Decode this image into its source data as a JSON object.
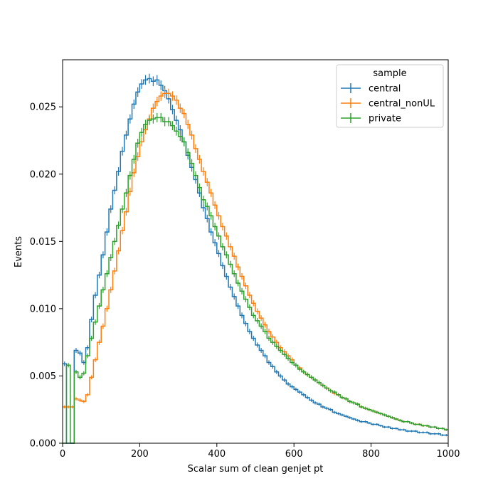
{
  "chart_data": {
    "type": "line",
    "title": "",
    "xlabel": "Scalar sum of clean genjet pt",
    "ylabel": "Events",
    "xlim": [
      0,
      1000
    ],
    "ylim": [
      0,
      0.0285
    ],
    "xticks": [
      0,
      200,
      400,
      600,
      800,
      1000
    ],
    "xtick_labels": [
      "0",
      "200",
      "400",
      "600",
      "800",
      "1000"
    ],
    "yticks": [
      0,
      0.005,
      0.01,
      0.015,
      0.02,
      0.025
    ],
    "ytick_labels": [
      "0.000",
      "0.005",
      "0.010",
      "0.015",
      "0.020",
      "0.025"
    ],
    "grid": false,
    "legend": {
      "title": "sample",
      "placement": "top-right"
    },
    "bin_edges_start": 0,
    "bin_width": 10,
    "series": [
      {
        "name": "central",
        "color": "#1f77b4",
        "values": [
          0.0059,
          0.0,
          0.0,
          0.0069,
          0.0067,
          0.006,
          0.0071,
          0.0092,
          0.011,
          0.0125,
          0.014,
          0.0157,
          0.0174,
          0.0188,
          0.0202,
          0.0217,
          0.0229,
          0.0241,
          0.0252,
          0.0261,
          0.0267,
          0.027,
          0.0271,
          0.0269,
          0.027,
          0.0266,
          0.0262,
          0.0256,
          0.0248,
          0.024,
          0.0233,
          0.0224,
          0.0214,
          0.0205,
          0.0196,
          0.0186,
          0.0175,
          0.0167,
          0.0157,
          0.0149,
          0.0141,
          0.0132,
          0.0124,
          0.0116,
          0.0109,
          0.0102,
          0.0095,
          0.0089,
          0.0083,
          0.0078,
          0.0073,
          0.0069,
          0.0065,
          0.006,
          0.0057,
          0.0053,
          0.005,
          0.0047,
          0.0044,
          0.0042,
          0.004,
          0.0038,
          0.0036,
          0.0034,
          0.0032,
          0.003,
          0.0029,
          0.0027,
          0.0026,
          0.0025,
          0.0023,
          0.0022,
          0.0021,
          0.002,
          0.0019,
          0.0018,
          0.0017,
          0.0016,
          0.0016,
          0.0015,
          0.0014,
          0.0014,
          0.0013,
          0.0012,
          0.0012,
          0.0011,
          0.0011,
          0.001,
          0.001,
          0.0009,
          0.0009,
          0.0009,
          0.0008,
          0.0008,
          0.0008,
          0.0007,
          0.0007,
          0.0007,
          0.0006,
          0.0006
        ]
      },
      {
        "name": "central_nonUL",
        "color": "#ff7f0e",
        "values": [
          0.0027,
          0.0027,
          0.0027,
          0.0033,
          0.0032,
          0.0031,
          0.0036,
          0.0049,
          0.0062,
          0.0075,
          0.0087,
          0.01,
          0.0114,
          0.0128,
          0.0143,
          0.0158,
          0.0172,
          0.0187,
          0.0201,
          0.0213,
          0.0224,
          0.0233,
          0.0241,
          0.0249,
          0.0254,
          0.0258,
          0.026,
          0.026,
          0.0258,
          0.0255,
          0.0249,
          0.0245,
          0.0237,
          0.0229,
          0.0219,
          0.0211,
          0.0202,
          0.0194,
          0.0186,
          0.0177,
          0.0169,
          0.0161,
          0.0154,
          0.0146,
          0.0139,
          0.0131,
          0.0124,
          0.0117,
          0.011,
          0.0104,
          0.0098,
          0.0093,
          0.0088,
          0.0083,
          0.0079,
          0.0075,
          0.0071,
          0.0068,
          0.0065,
          0.0062,
          0.0058,
          0.0056,
          0.0053,
          0.0051,
          0.0049,
          0.0047,
          0.0045,
          0.0043,
          0.0041,
          0.0039,
          0.0037,
          0.0036,
          0.0034,
          0.0033,
          0.0031,
          0.003,
          0.0029,
          0.0027,
          0.0026,
          0.0025,
          0.0024,
          0.0023,
          0.0022,
          0.0021,
          0.002,
          0.0019,
          0.0018,
          0.0017,
          0.0016,
          0.0016,
          0.0015,
          0.0014,
          0.0014,
          0.0013,
          0.0013,
          0.0012,
          0.0012,
          0.0011,
          0.0011,
          0.001
        ]
      },
      {
        "name": "private",
        "color": "#2ca02c",
        "values": [
          0.0,
          0.0058,
          0.0,
          0.0053,
          0.0049,
          0.0052,
          0.0065,
          0.0078,
          0.009,
          0.0102,
          0.0114,
          0.0126,
          0.0138,
          0.015,
          0.0162,
          0.0174,
          0.0186,
          0.0199,
          0.0211,
          0.0223,
          0.0231,
          0.0237,
          0.024,
          0.0241,
          0.0242,
          0.0242,
          0.0239,
          0.0239,
          0.0236,
          0.0232,
          0.0228,
          0.0224,
          0.0216,
          0.0208,
          0.0199,
          0.019,
          0.0181,
          0.0176,
          0.0169,
          0.0161,
          0.0154,
          0.0146,
          0.014,
          0.0133,
          0.0126,
          0.0119,
          0.0113,
          0.0107,
          0.0101,
          0.0095,
          0.0091,
          0.0087,
          0.0083,
          0.0078,
          0.0075,
          0.0072,
          0.0069,
          0.0066,
          0.0063,
          0.006,
          0.0058,
          0.0055,
          0.0053,
          0.0051,
          0.0049,
          0.0047,
          0.0045,
          0.0043,
          0.0041,
          0.0039,
          0.0038,
          0.0036,
          0.0034,
          0.0033,
          0.0031,
          0.003,
          0.0029,
          0.0027,
          0.0026,
          0.0025,
          0.0024,
          0.0023,
          0.0022,
          0.0021,
          0.002,
          0.0019,
          0.0018,
          0.0017,
          0.0016,
          0.0016,
          0.0015,
          0.0014,
          0.0014,
          0.0013,
          0.0013,
          0.0012,
          0.0012,
          0.0011,
          0.0011,
          0.001
        ]
      }
    ]
  }
}
